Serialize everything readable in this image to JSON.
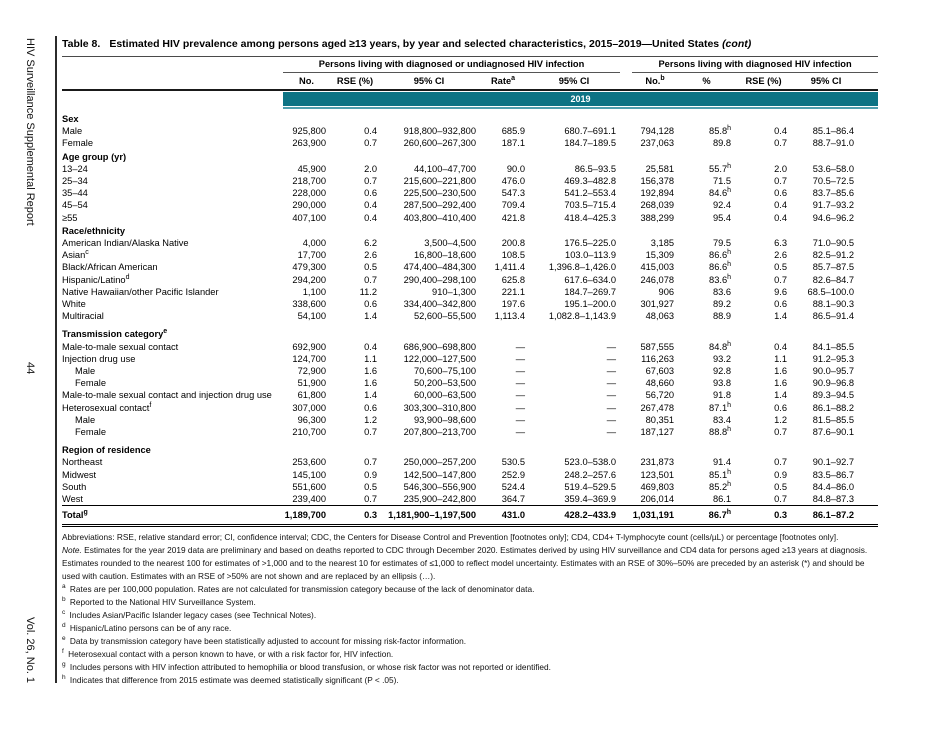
{
  "colors": {
    "teal": "#0d7384",
    "teal_light": "#4f9fae"
  },
  "sidebar": {
    "journal": "HIV Surveillance Supplemental Report",
    "page_number": "44",
    "volume": "Vol. 26, No. 1"
  },
  "title": {
    "label": "Table 8.",
    "text": "Estimated HIV prevalence among persons aged ≥13 years, by year and selected characteristics, 2015–2019—United States",
    "cont": "(cont)"
  },
  "table": {
    "group_headers": [
      "Persons living with diagnosed or undiagnosed HIV infection",
      "Persons living with diagnosed HIV infection"
    ],
    "col_headers": [
      "No.",
      "RSE (%)",
      "95% CI",
      "Rate^a",
      "95% CI",
      "No.^b",
      "%",
      "RSE (%)",
      "95% CI"
    ],
    "year_band": "2019",
    "rows": [
      {
        "type": "section",
        "label": "Sex"
      },
      {
        "type": "data",
        "label": "Male",
        "cells": [
          "925,800",
          "0.4",
          "918,800–932,800",
          "685.9",
          "680.7–691.1",
          "794,128",
          "85.8^h",
          "0.4",
          "85.1–86.4"
        ]
      },
      {
        "type": "data",
        "label": "Female",
        "cells": [
          "263,900",
          "0.7",
          "260,600–267,300",
          "187.1",
          "184.7–189.5",
          "237,063",
          "89.8",
          "0.7",
          "88.7–91.0"
        ]
      },
      {
        "type": "section",
        "label": "Age group (yr)"
      },
      {
        "type": "data",
        "label": "13–24",
        "cells": [
          "45,900",
          "2.0",
          "44,100–47,700",
          "90.0",
          "86.5–93.5",
          "25,581",
          "55.7^h",
          "2.0",
          "53.6–58.0"
        ]
      },
      {
        "type": "data",
        "label": "25–34",
        "cells": [
          "218,700",
          "0.7",
          "215,600–221,800",
          "476.0",
          "469.3–482.8",
          "156,378",
          "71.5",
          "0.7",
          "70.5–72.5"
        ]
      },
      {
        "type": "data",
        "label": "35–44",
        "cells": [
          "228,000",
          "0.6",
          "225,500–230,500",
          "547.3",
          "541.2–553.4",
          "192,894",
          "84.6^h",
          "0.6",
          "83.7–85.6"
        ]
      },
      {
        "type": "data",
        "label": "45–54",
        "cells": [
          "290,000",
          "0.4",
          "287,500–292,400",
          "709.4",
          "703.5–715.4",
          "268,039",
          "92.4",
          "0.4",
          "91.7–93.2"
        ]
      },
      {
        "type": "data",
        "label": "≥55",
        "cells": [
          "407,100",
          "0.4",
          "403,800–410,400",
          "421.8",
          "418.4–425.3",
          "388,299",
          "95.4",
          "0.4",
          "94.6–96.2"
        ]
      },
      {
        "type": "section",
        "label": "Race/ethnicity"
      },
      {
        "type": "data",
        "label": "American Indian/Alaska Native",
        "cells": [
          "4,000",
          "6.2",
          "3,500–4,500",
          "200.8",
          "176.5–225.0",
          "3,185",
          "79.5",
          "6.3",
          "71.0–90.5"
        ]
      },
      {
        "type": "data",
        "label": "Asian^c",
        "cells": [
          "17,700",
          "2.6",
          "16,800–18,600",
          "108.5",
          "103.0–113.9",
          "15,309",
          "86.6^h",
          "2.6",
          "82.5–91.2"
        ]
      },
      {
        "type": "data",
        "label": "Black/African American",
        "cells": [
          "479,300",
          "0.5",
          "474,400–484,300",
          "1,411.4",
          "1,396.8–1,426.0",
          "415,003",
          "86.6^h",
          "0.5",
          "85.7–87.5"
        ]
      },
      {
        "type": "data",
        "label": "Hispanic/Latino^d",
        "cells": [
          "294,200",
          "0.7",
          "290,400–298,100",
          "625.8",
          "617.6–634.0",
          "246,078",
          "83.6^h",
          "0.7",
          "82.6–84.7"
        ]
      },
      {
        "type": "data",
        "label": "Native Hawaiian/other Pacific Islander",
        "cells": [
          "1,100",
          "11.2",
          "910–1,300",
          "221.1",
          "184.7–269.7",
          "906",
          "83.6",
          "9.6",
          "68.5–100.0"
        ]
      },
      {
        "type": "data",
        "label": "White",
        "cells": [
          "338,600",
          "0.6",
          "334,400–342,800",
          "197.6",
          "195.1–200.0",
          "301,927",
          "89.2",
          "0.6",
          "88.1–90.3"
        ]
      },
      {
        "type": "data",
        "label": "Multiracial",
        "cells": [
          "54,100",
          "1.4",
          "52,600–55,500",
          "1,113.4",
          "1,082.8–1,143.9",
          "48,063",
          "88.9",
          "1.4",
          "86.5–91.4"
        ]
      },
      {
        "type": "section",
        "label": "Transmission category^e",
        "gap": true
      },
      {
        "type": "data",
        "label": "Male-to-male sexual contact",
        "cells": [
          "692,900",
          "0.4",
          "686,900–698,800",
          "—",
          "—",
          "587,555",
          "84.8^h",
          "0.4",
          "84.1–85.5"
        ]
      },
      {
        "type": "data",
        "label": "Injection drug use",
        "cells": [
          "124,700",
          "1.1",
          "122,000–127,500",
          "—",
          "—",
          "116,263",
          "93.2",
          "1.1",
          "91.2–95.3"
        ]
      },
      {
        "type": "indent",
        "label": "Male",
        "cells": [
          "72,900",
          "1.6",
          "70,600–75,100",
          "—",
          "—",
          "67,603",
          "92.8",
          "1.6",
          "90.0–95.7"
        ]
      },
      {
        "type": "indent",
        "label": "Female",
        "cells": [
          "51,900",
          "1.6",
          "50,200–53,500",
          "—",
          "—",
          "48,660",
          "93.8",
          "1.6",
          "90.9–96.8"
        ]
      },
      {
        "type": "data",
        "label": "Male-to-male sexual contact and injection drug use",
        "cells": [
          "61,800",
          "1.4",
          "60,000–63,500",
          "—",
          "—",
          "56,720",
          "91.8",
          "1.4",
          "89.3–94.5"
        ]
      },
      {
        "type": "data",
        "label": "Heterosexual contact^f",
        "cells": [
          "307,000",
          "0.6",
          "303,300–310,800",
          "—",
          "—",
          "267,478",
          "87.1^h",
          "0.6",
          "86.1–88.2"
        ]
      },
      {
        "type": "indent",
        "label": "Male",
        "cells": [
          "96,300",
          "1.2",
          "93,900–98,600",
          "—",
          "—",
          "80,351",
          "83.4",
          "1.2",
          "81.5–85.5"
        ]
      },
      {
        "type": "indent",
        "label": "Female",
        "cells": [
          "210,700",
          "0.7",
          "207,800–213,700",
          "—",
          "—",
          "187,127",
          "88.8^h",
          "0.7",
          "87.6–90.1"
        ]
      },
      {
        "type": "section",
        "label": "Region of residence",
        "gap": true
      },
      {
        "type": "data",
        "label": "Northeast",
        "cells": [
          "253,600",
          "0.7",
          "250,000–257,200",
          "530.5",
          "523.0–538.0",
          "231,873",
          "91.4",
          "0.7",
          "90.1–92.7"
        ]
      },
      {
        "type": "data",
        "label": "Midwest",
        "cells": [
          "145,100",
          "0.9",
          "142,500–147,800",
          "252.9",
          "248.2–257.6",
          "123,501",
          "85.1^h",
          "0.9",
          "83.5–86.7"
        ]
      },
      {
        "type": "data",
        "label": "South",
        "cells": [
          "551,600",
          "0.5",
          "546,300–556,900",
          "524.4",
          "519.4–529.5",
          "469,803",
          "85.2^h",
          "0.5",
          "84.4–86.0"
        ]
      },
      {
        "type": "data",
        "label": "West",
        "cells": [
          "239,400",
          "0.7",
          "235,900–242,800",
          "364.7",
          "359.4–369.9",
          "206,014",
          "86.1",
          "0.7",
          "84.8–87.3"
        ]
      },
      {
        "type": "total",
        "label": "Total^g",
        "cells": [
          "1,189,700",
          "0.3",
          "1,181,900–1,197,500",
          "431.0",
          "428.2–433.9",
          "1,031,191",
          "86.7^h",
          "0.3",
          "86.1–87.2"
        ]
      }
    ]
  },
  "footnotes": {
    "abbreviations": "Abbreviations: RSE, relative standard error; CI, confidence interval; CDC, the Centers for Disease Control and Prevention [footnotes only]; CD4, CD4+ T-lymphocyte count (cells/µL) or percentage [footnotes only].",
    "note_lead": "Note.",
    "note_text": "Estimates for the year 2019 data are preliminary and based on deaths reported to CDC through December 2020. Estimates derived by using HIV surveillance and CD4 data for persons aged ≥13 years at diagnosis. Estimates rounded to the nearest 100 for estimates of >1,000 and to the nearest 10 for estimates of ≤1,000 to reflect model uncertainty. Estimates with an RSE of 30%–50% are preceded by an asterisk (*) and should be used with caution. Estimates with an RSE of >50% are not shown and are replaced by an ellipsis (…).",
    "items": [
      {
        "sup": "a",
        "text": "Rates are per 100,000 population. Rates are not calculated for transmission category because of the lack of denominator data."
      },
      {
        "sup": "b",
        "text": "Reported to the National HIV Surveillance System."
      },
      {
        "sup": "c",
        "text": "Includes Asian/Pacific Islander legacy cases (see Technical Notes)."
      },
      {
        "sup": "d",
        "text": "Hispanic/Latino persons can be of any race."
      },
      {
        "sup": "e",
        "text": "Data by transmission category have been statistically adjusted to account for missing risk-factor information."
      },
      {
        "sup": "f",
        "text": "Heterosexual contact with a person known to have, or with a risk factor for, HIV infection."
      },
      {
        "sup": "g",
        "text": "Includes persons with HIV infection attributed to hemophilia or blood transfusion, or whose risk factor was not reported or identified."
      },
      {
        "sup": "h",
        "text": "Indicates that difference from 2015 estimate was deemed statistically significant (P < .05)."
      }
    ]
  }
}
